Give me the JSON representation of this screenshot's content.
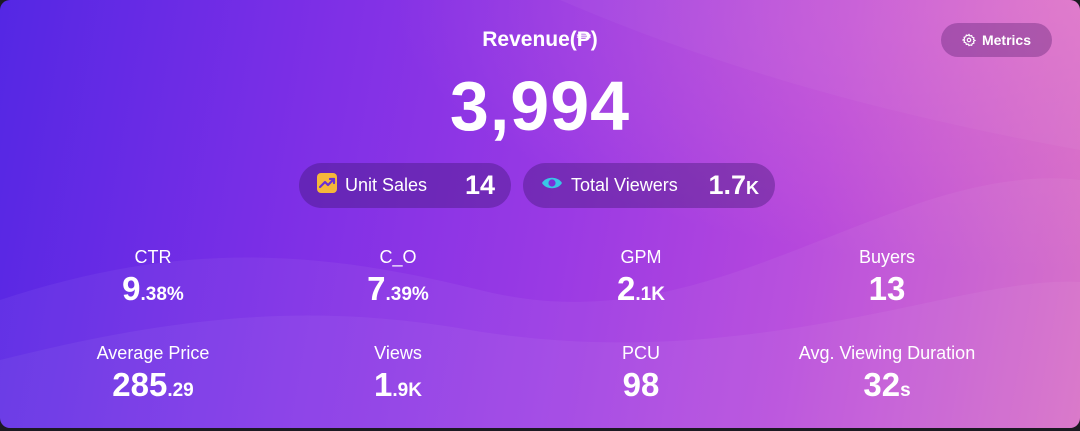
{
  "header": {
    "title": "Revenue(₱)",
    "value": "3,994"
  },
  "metrics_button": {
    "label": "Metrics",
    "icon": "gear-icon"
  },
  "highlights": [
    {
      "label": "Unit Sales",
      "value_main": "14",
      "value_suffix": "",
      "icon": "trend-up-icon",
      "icon_color": "#f5b73a"
    },
    {
      "label": "Total Viewers",
      "value_main": "1.7",
      "value_suffix": "K",
      "icon": "eye-icon",
      "icon_color": "#39c6e6"
    }
  ],
  "stats": [
    {
      "label": "CTR",
      "value_main": "9",
      "value_suffix": ".38%"
    },
    {
      "label": "C_O",
      "value_main": "7",
      "value_suffix": ".39%"
    },
    {
      "label": "GPM",
      "value_main": "2",
      "value_suffix": ".1K"
    },
    {
      "label": "Buyers",
      "value_main": "13",
      "value_suffix": ""
    },
    {
      "label": "Average Price",
      "value_main": "285",
      "value_suffix": ".29"
    },
    {
      "label": "Views",
      "value_main": "1",
      "value_suffix": ".9K"
    },
    {
      "label": "PCU",
      "value_main": "98",
      "value_suffix": ""
    },
    {
      "label": "Avg. Viewing Duration",
      "value_main": "32",
      "value_suffix": "s"
    }
  ]
}
